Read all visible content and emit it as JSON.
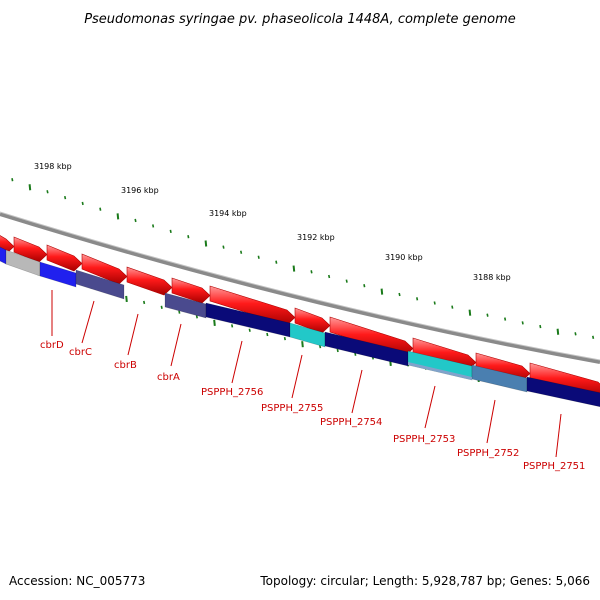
{
  "title": "Pseudomonas syringae pv. phaseolicola 1448A, complete genome",
  "footer": {
    "accession": "Accession: NC_005773",
    "topology": "Topology: circular; Length: 5,928,787 bp; Genes: 5,066"
  },
  "colors": {
    "backbone": "#8a8a8a",
    "forward_gene": "#ee0000",
    "ticks": "#1a7a1a",
    "labels": "#cc0000",
    "reverse_dark": "#0a0a78",
    "reverse_mid": "#4a4a8e",
    "reverse_cyan": "#22c8c8",
    "reverse_steel": "#4a7fb0",
    "reverse_blue": "#2020ee",
    "reverse_grey": "#b8b8b8"
  },
  "tick_labels": [
    "3198 kbp",
    "3196 kbp",
    "3194 kbp",
    "3192 kbp",
    "3190 kbp",
    "3188 kbp"
  ],
  "gene_labels": [
    "cbrD",
    "cbrC",
    "cbrB",
    "cbrA",
    "PSPPH_2756",
    "PSPPH_2755",
    "PSPPH_2754",
    "PSPPH_2753",
    "PSPPH_2752",
    "PSPPH_2751"
  ],
  "forward_genes": [
    {
      "strand": "+",
      "color": "forward_gene"
    },
    {
      "strand": "+",
      "color": "forward_gene"
    },
    {
      "strand": "+",
      "color": "forward_gene"
    },
    {
      "strand": "+",
      "color": "forward_gene"
    },
    {
      "strand": "+",
      "color": "forward_gene"
    },
    {
      "strand": "+",
      "color": "forward_gene"
    },
    {
      "strand": "+",
      "color": "forward_gene"
    },
    {
      "strand": "+",
      "color": "forward_gene"
    },
    {
      "strand": "+",
      "color": "forward_gene"
    },
    {
      "strand": "+",
      "color": "forward_gene"
    },
    {
      "strand": "+",
      "color": "forward_gene"
    },
    {
      "strand": "+",
      "color": "forward_gene"
    }
  ],
  "reverse_genes": [
    {
      "strand": "-",
      "color": "reverse_blue"
    },
    {
      "strand": "-",
      "color": "reverse_grey"
    },
    {
      "strand": "-",
      "color": "reverse_blue"
    },
    {
      "strand": "-",
      "color": "reverse_mid"
    },
    {
      "strand": "-",
      "color": "reverse_mid"
    },
    {
      "strand": "-",
      "color": "reverse_dark"
    },
    {
      "strand": "-",
      "color": "reverse_cyan"
    },
    {
      "strand": "-",
      "color": "reverse_dark"
    },
    {
      "strand": "-",
      "color": "reverse_cyan"
    },
    {
      "strand": "-",
      "color": "reverse_steel"
    },
    {
      "strand": "-",
      "color": "reverse_dark"
    }
  ]
}
